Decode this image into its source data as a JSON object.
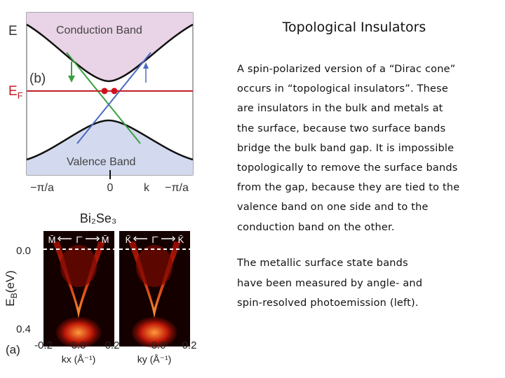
{
  "title": "Topological Insulators",
  "paragraphs": [
    [
      "A spin-polarized version of a “Dirac cone”",
      "occurs in “topological insulators”.  These",
      "are insulators in the bulk and metals at",
      "the surface, because two surface bands",
      "bridge the bulk band gap. It is impossible",
      "topologically to remove the surface bands",
      "from the gap, because they are tied to   the",
      "valence band on one side and to the",
      "conduction band on the other."
    ],
    [
      "The metallic surface state bands",
      "have been measured by angle- and",
      "spin-resolved photoemission (left)."
    ]
  ],
  "figure_b": {
    "panel": "(b)",
    "energy_axis": "E",
    "fermi": {
      "main": "E",
      "sub": "F"
    },
    "conduction_band": "Conduction Band",
    "valence_band": "Valence Band",
    "k_labels": [
      "−π/a",
      "0",
      "k",
      "−π/a"
    ]
  },
  "figure_a": {
    "panel": "(a)",
    "material": "Bi₂Se₃",
    "panel1_points": [
      "M̄",
      "Γ̄",
      "M̄"
    ],
    "panel2_points": [
      "K̄",
      "Γ̄",
      "K̄"
    ],
    "y_ticks": [
      "0.0",
      "0.4"
    ],
    "y_label": {
      "main": "E",
      "sub": "B",
      "unit": "(eV)"
    },
    "x_ticks": [
      "-0.2",
      "0.0",
      "0.2",
      "0.0",
      "0.2"
    ],
    "x_labels": [
      "kx (Å⁻¹)",
      "ky (Å⁻¹)"
    ]
  }
}
